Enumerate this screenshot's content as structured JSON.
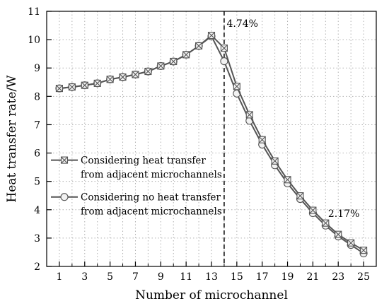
{
  "chart_data": {
    "type": "line",
    "title": "",
    "xlabel": "Number of microchannel",
    "ylabel": "Heat transfer rate/W",
    "xlim": [
      0,
      26
    ],
    "ylim": [
      2,
      11
    ],
    "x_ticks": [
      1,
      3,
      5,
      7,
      9,
      11,
      13,
      15,
      17,
      19,
      21,
      23,
      25
    ],
    "x_minor_ticks": [
      2,
      4,
      6,
      8,
      10,
      12,
      14,
      16,
      18,
      20,
      22,
      24
    ],
    "y_ticks": [
      2,
      3,
      4,
      5,
      6,
      7,
      8,
      9,
      10,
      11
    ],
    "grid": true,
    "legend_position": "middle-left",
    "x": [
      1,
      2,
      3,
      4,
      5,
      6,
      7,
      8,
      9,
      10,
      11,
      12,
      13,
      14,
      15,
      16,
      17,
      18,
      19,
      20,
      21,
      22,
      23,
      24,
      25
    ],
    "series": [
      {
        "name": "Considering heat transfer from adjacent microchannels",
        "name_lines": [
          "Considering heat transfer",
          "from adjacent microchannels"
        ],
        "marker": "box-x",
        "values": [
          8.28,
          8.33,
          8.39,
          8.46,
          8.6,
          8.68,
          8.77,
          8.88,
          9.07,
          9.23,
          9.47,
          9.78,
          10.15,
          9.7,
          8.35,
          7.35,
          6.47,
          5.72,
          5.06,
          4.49,
          3.98,
          3.53,
          3.13,
          2.83,
          2.57
        ]
      },
      {
        "name": "Considering no heat transfer from adjacent microchannels",
        "name_lines": [
          "Considering no heat transfer",
          "from adjacent microchannels"
        ],
        "marker": "circle",
        "values": [
          8.28,
          8.33,
          8.39,
          8.46,
          8.6,
          8.68,
          8.77,
          8.88,
          9.07,
          9.23,
          9.47,
          9.78,
          10.12,
          9.24,
          8.1,
          7.14,
          6.3,
          5.57,
          4.93,
          4.38,
          3.88,
          3.44,
          3.06,
          2.76,
          2.46
        ]
      }
    ],
    "reference_line": {
      "x": 14,
      "style": "dashed"
    },
    "annotations": [
      {
        "text": "4.74%",
        "x": 14.2,
        "y": 10.45
      },
      {
        "text": "2.17%",
        "x": 22.2,
        "y": 3.75
      }
    ],
    "colors": {
      "line": "#555555",
      "marker_edge": "#555555",
      "marker_fill": "#f2f2f2",
      "grid": "#b0b0b0",
      "axis": "#000000"
    }
  }
}
